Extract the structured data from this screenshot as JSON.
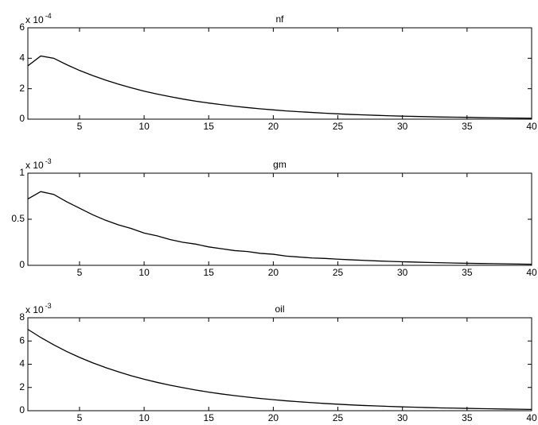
{
  "chart_data": [
    {
      "type": "line",
      "title": "nf",
      "scale_label": {
        "base": "x 10",
        "exponent": "-4"
      },
      "x": [
        1,
        2,
        3,
        4,
        5,
        6,
        7,
        8,
        9,
        10,
        11,
        12,
        13,
        14,
        15,
        16,
        17,
        18,
        19,
        20,
        21,
        22,
        23,
        24,
        25,
        26,
        27,
        28,
        29,
        30,
        31,
        32,
        33,
        34,
        35,
        36,
        37,
        38,
        39,
        40
      ],
      "series": [
        {
          "color": "#000000",
          "values": [
            3.5,
            4.15,
            4.0,
            3.58,
            3.2,
            2.87,
            2.57,
            2.3,
            2.06,
            1.84,
            1.65,
            1.48,
            1.32,
            1.18,
            1.06,
            0.95,
            0.85,
            0.76,
            0.68,
            0.61,
            0.54,
            0.49,
            0.44,
            0.39,
            0.35,
            0.31,
            0.28,
            0.25,
            0.22,
            0.2,
            0.18,
            0.16,
            0.14,
            0.13,
            0.12,
            0.1,
            0.09,
            0.08,
            0.07,
            0.06
          ]
        }
      ],
      "xlim": [
        1,
        40
      ],
      "xticks": [
        5,
        10,
        15,
        20,
        25,
        30,
        35,
        40
      ],
      "ylim": [
        0,
        6
      ],
      "yticks": [
        0,
        2,
        4,
        6
      ]
    },
    {
      "type": "line",
      "title": "gm",
      "scale_label": {
        "base": "x 10",
        "exponent": "-3"
      },
      "x": [
        1,
        2,
        3,
        4,
        5,
        6,
        7,
        8,
        9,
        10,
        11,
        12,
        13,
        14,
        15,
        16,
        17,
        18,
        19,
        20,
        21,
        22,
        23,
        24,
        25,
        26,
        27,
        28,
        29,
        30,
        31,
        32,
        33,
        34,
        35,
        36,
        37,
        38,
        39,
        40
      ],
      "series": [
        {
          "color": "#000000",
          "values": [
            0.72,
            0.8,
            0.77,
            0.69,
            0.62,
            0.55,
            0.49,
            0.44,
            0.4,
            0.35,
            0.32,
            0.28,
            0.25,
            0.23,
            0.2,
            0.18,
            0.16,
            0.15,
            0.13,
            0.12,
            0.1,
            0.09,
            0.08,
            0.075,
            0.067,
            0.06,
            0.054,
            0.048,
            0.043,
            0.039,
            0.035,
            0.031,
            0.028,
            0.025,
            0.022,
            0.02,
            0.018,
            0.016,
            0.014,
            0.012
          ]
        }
      ],
      "xlim": [
        1,
        40
      ],
      "xticks": [
        5,
        10,
        15,
        20,
        25,
        30,
        35,
        40
      ],
      "ylim": [
        0,
        1
      ],
      "yticks": [
        0,
        0.5,
        1
      ]
    },
    {
      "type": "line",
      "title": "oil",
      "scale_label": {
        "base": "x 10",
        "exponent": "-3"
      },
      "x": [
        1,
        2,
        3,
        4,
        5,
        6,
        7,
        8,
        9,
        10,
        11,
        12,
        13,
        14,
        15,
        16,
        17,
        18,
        19,
        20,
        21,
        22,
        23,
        24,
        25,
        26,
        27,
        28,
        29,
        30,
        31,
        32,
        33,
        34,
        35,
        36,
        37,
        38,
        39,
        40
      ],
      "series": [
        {
          "color": "#000000",
          "values": [
            7,
            6.3,
            5.67,
            5.1,
            4.59,
            4.13,
            3.72,
            3.35,
            3.01,
            2.71,
            2.44,
            2.2,
            1.98,
            1.78,
            1.6,
            1.44,
            1.3,
            1.17,
            1.05,
            0.95,
            0.85,
            0.77,
            0.69,
            0.62,
            0.56,
            0.5,
            0.45,
            0.41,
            0.37,
            0.33,
            0.3,
            0.27,
            0.24,
            0.22,
            0.2,
            0.18,
            0.16,
            0.14,
            0.13,
            0.11
          ]
        }
      ],
      "xlim": [
        1,
        40
      ],
      "xticks": [
        5,
        10,
        15,
        20,
        25,
        30,
        35,
        40
      ],
      "ylim": [
        0,
        8
      ],
      "yticks": [
        0,
        2,
        4,
        6,
        8
      ]
    }
  ]
}
